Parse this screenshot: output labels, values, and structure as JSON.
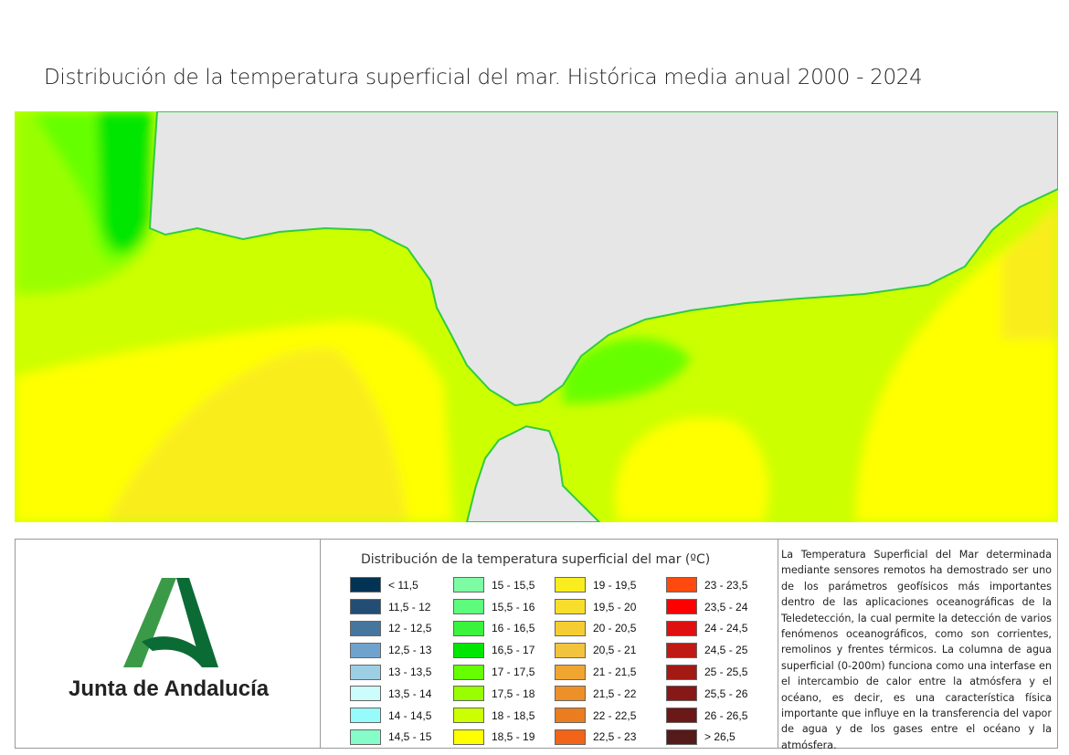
{
  "title": "Distribución de la temperatura superficial del mar. Histórica  media anual 2000 - 2024",
  "colors": {
    "land": "#e6e6e6",
    "logo_green_light": "#3a9a48",
    "logo_green_dark": "#0b6b35"
  },
  "logo": {
    "text": "Junta de Andalucía"
  },
  "legend": {
    "title": "Distribución de la temperatura superficial del mar (ºC)",
    "columns": [
      [
        {
          "label": "< 11,5",
          "color": "#023354"
        },
        {
          "label": "11,5 - 12",
          "color": "#244d73"
        },
        {
          "label": "12 - 12,5",
          "color": "#46769d"
        },
        {
          "label": "12,5 - 13",
          "color": "#6fa3cd"
        },
        {
          "label": "13 - 13,5",
          "color": "#9ccfe3"
        },
        {
          "label": "13,5 - 14",
          "color": "#ccfcfc"
        },
        {
          "label": "14 - 14,5",
          "color": "#97fbfb"
        },
        {
          "label": "14,5 - 15",
          "color": "#86fcc9"
        }
      ],
      [
        {
          "label": "15 - 15,5",
          "color": "#7dfca4"
        },
        {
          "label": "15,5 - 16",
          "color": "#5efc7d"
        },
        {
          "label": "16 - 16,5",
          "color": "#3af33d"
        },
        {
          "label": "16,5 - 17",
          "color": "#00e600"
        },
        {
          "label": "17 - 17,5",
          "color": "#66ff00"
        },
        {
          "label": "17,5 - 18",
          "color": "#99ff00"
        },
        {
          "label": "18 - 18,5",
          "color": "#ccff00"
        },
        {
          "label": "18,5 - 19",
          "color": "#ffff00"
        }
      ],
      [
        {
          "label": "19 - 19,5",
          "color": "#f9ed1f"
        },
        {
          "label": "19,5 - 20",
          "color": "#f8de2c"
        },
        {
          "label": "20 - 20,5",
          "color": "#f5cd33"
        },
        {
          "label": "20,5 - 21",
          "color": "#f2c33d"
        },
        {
          "label": "21 - 21,5",
          "color": "#f0a530"
        },
        {
          "label": "21,5 - 22",
          "color": "#ee9028"
        },
        {
          "label": "22 - 22,5",
          "color": "#ea7d1e"
        },
        {
          "label": "22,5 - 23",
          "color": "#f26418"
        }
      ],
      [
        {
          "label": "23 - 23,5",
          "color": "#fe4a0e"
        },
        {
          "label": "23,5 - 24",
          "color": "#ff0000"
        },
        {
          "label": "24 - 24,5",
          "color": "#e01010"
        },
        {
          "label": "24,5 - 25",
          "color": "#c01a14"
        },
        {
          "label": "25 - 25,5",
          "color": "#a31a15"
        },
        {
          "label": "25,5 - 26",
          "color": "#871818"
        },
        {
          "label": "26 - 26,5",
          "color": "#6b1818"
        },
        {
          "label": "> 26,5",
          "color": "#551a1a"
        }
      ]
    ]
  },
  "description": "La Temperatura Superficial del Mar determinada mediante sensores remotos ha demostrado ser uno de los parámetros geofísicos más importantes dentro de las aplicaciones oceanográficas de la Teledetección, la cual permite la detección de varios fenómenos oceanográficos, como son corrientes, remolinos y frentes térmicos. La columna de agua superficial (0-200m) funciona como una interfase en el intercambio de calor entre la atmósfera y el océano, es decir, es una característica física importante que influye en la transferencia del vapor de agua y de los gases entre el océano y la atmósfera."
}
